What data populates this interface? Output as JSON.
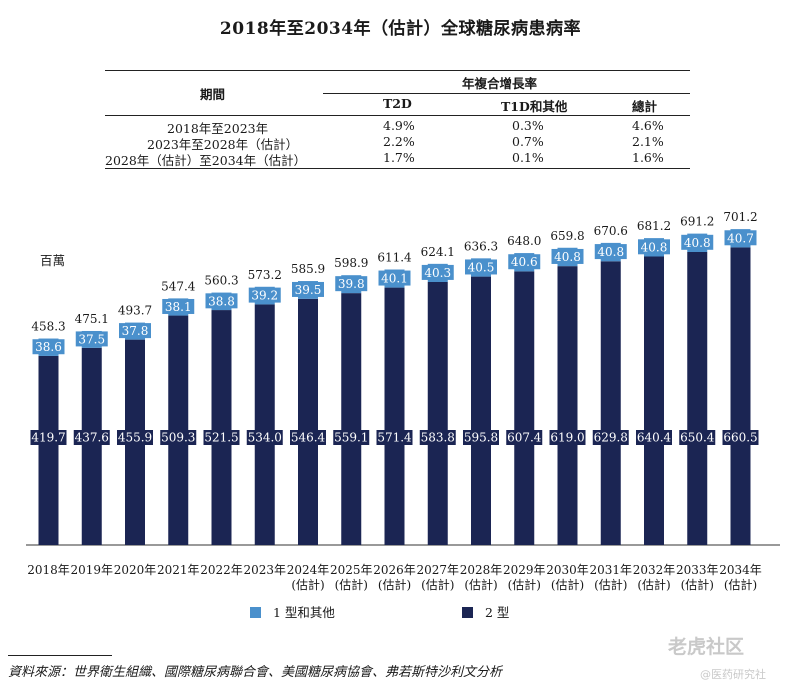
{
  "title": "2018年至2034年（估計）全球糖尿病患病率",
  "cagr_table": {
    "period_header": "期間",
    "group_header": "年複合增長率",
    "columns": [
      "T2D",
      "T1D和其他",
      "總計"
    ],
    "rows": [
      {
        "period": "2018年至2023年",
        "values": [
          "4.9%",
          "0.3%",
          "4.6%"
        ]
      },
      {
        "period": "2023年至2028年（估計）",
        "values": [
          "2.2%",
          "0.7%",
          "2.1%"
        ]
      },
      {
        "period": "2028年（估計）至2034年（估計）",
        "values": [
          "1.7%",
          "0.1%",
          "1.6%"
        ]
      }
    ]
  },
  "chart_data": {
    "type": "bar",
    "stacked": true,
    "unit_label": "百萬",
    "categories": [
      {
        "line1": "2018年",
        "line2": ""
      },
      {
        "line1": "2019年",
        "line2": ""
      },
      {
        "line1": "2020年",
        "line2": ""
      },
      {
        "line1": "2021年",
        "line2": ""
      },
      {
        "line1": "2022年",
        "line2": ""
      },
      {
        "line1": "2023年",
        "line2": ""
      },
      {
        "line1": "2024年",
        "line2": "(估計)"
      },
      {
        "line1": "2025年",
        "line2": "(估計)"
      },
      {
        "line1": "2026年",
        "line2": "(估計)"
      },
      {
        "line1": "2027年",
        "line2": "(估計)"
      },
      {
        "line1": "2028年",
        "line2": "(估計)"
      },
      {
        "line1": "2029年",
        "line2": "(估計)"
      },
      {
        "line1": "2030年",
        "line2": "(估計)"
      },
      {
        "line1": "2031年",
        "line2": "(估計)"
      },
      {
        "line1": "2032年",
        "line2": "(估計)"
      },
      {
        "line1": "2033年",
        "line2": "(估計)"
      },
      {
        "line1": "2034年",
        "line2": "(估計)"
      }
    ],
    "series": [
      {
        "name": "2 型",
        "color": "#1b2553",
        "values": [
          419.7,
          437.6,
          455.9,
          509.3,
          521.5,
          534.0,
          546.4,
          559.1,
          571.4,
          583.8,
          595.8,
          607.4,
          619.0,
          629.8,
          640.4,
          650.4,
          660.5
        ]
      },
      {
        "name": "1 型和其他",
        "color": "#4a90cc",
        "values": [
          38.6,
          37.5,
          37.8,
          38.1,
          38.8,
          39.2,
          39.5,
          39.8,
          40.1,
          40.3,
          40.5,
          40.6,
          40.8,
          40.8,
          40.8,
          40.8,
          40.7
        ]
      }
    ],
    "totals": [
      458.3,
      475.1,
      493.7,
      547.4,
      560.3,
      573.2,
      585.9,
      598.9,
      611.4,
      624.1,
      636.3,
      648.0,
      659.8,
      670.6,
      681.2,
      691.2,
      701.2
    ],
    "legend": [
      "1 型和其他",
      "2 型"
    ]
  },
  "source": "資料來源：世界衛生組織、國際糖尿病聯合會、美國糖尿病協會、弗若斯特沙利文分析",
  "watermark": {
    "line1": "老虎社区",
    "line2": "@医药研究社"
  }
}
